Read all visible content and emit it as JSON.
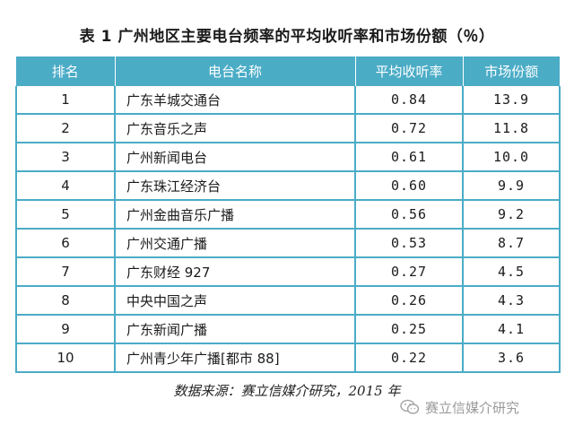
{
  "title": "表 1  广州地区主要电台频率的平均收听率和市场份额（％）",
  "table": {
    "headers": [
      "排名",
      "电台名称",
      "平均收听率",
      "市场份额"
    ],
    "rows": [
      {
        "rank": "1",
        "name": "广东羊城交通台",
        "rating": "0.84",
        "share": "13.9"
      },
      {
        "rank": "2",
        "name": "广东音乐之声",
        "rating": "0.72",
        "share": "11.8"
      },
      {
        "rank": "3",
        "name": "广州新闻电台",
        "rating": "0.61",
        "share": "10.0"
      },
      {
        "rank": "4",
        "name": "广东珠江经济台",
        "rating": "0.60",
        "share": "9.9"
      },
      {
        "rank": "5",
        "name": "广州金曲音乐广播",
        "rating": "0.56",
        "share": "9.2"
      },
      {
        "rank": "6",
        "name": "广州交通广播",
        "rating": "0.53",
        "share": "8.7"
      },
      {
        "rank": "7",
        "name": "广东财经 927",
        "rating": "0.27",
        "share": "4.5"
      },
      {
        "rank": "8",
        "name": "中央中国之声",
        "rating": "0.26",
        "share": "4.3"
      },
      {
        "rank": "9",
        "name": "广东新闻广播",
        "rating": "0.25",
        "share": "4.1"
      },
      {
        "rank": "10",
        "name": "广州青少年广播[都市 88]",
        "rating": "0.22",
        "share": "3.6"
      }
    ]
  },
  "source": "数据来源：赛立信媒介研究，2015 年",
  "watermark": {
    "icon": "wechat-icon",
    "text": "赛立信媒介研究"
  },
  "colors": {
    "accent": "#4bacc6",
    "header_text": "#ffffff"
  }
}
